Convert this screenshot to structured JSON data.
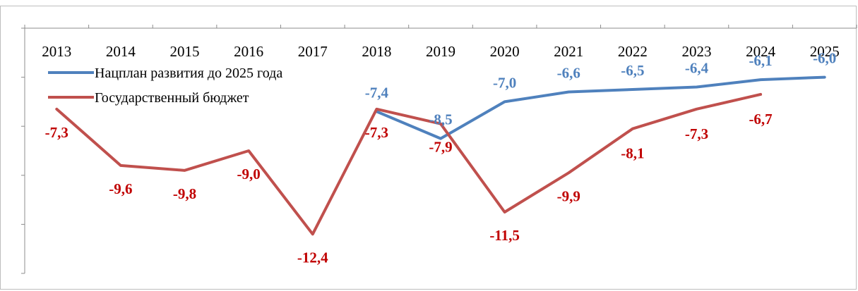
{
  "chart_data": {
    "type": "line",
    "x": [
      "2013",
      "2014",
      "2015",
      "2016",
      "2017",
      "2018",
      "2019",
      "2020",
      "2021",
      "2022",
      "2023",
      "2024",
      "2025"
    ],
    "ylim": [
      -14,
      -4
    ],
    "series": [
      {
        "name": "Нацплан развития до 2025 года",
        "color": "#4f81bd",
        "label_color": "#4f81bd",
        "values": [
          null,
          null,
          null,
          null,
          null,
          -7.4,
          -8.5,
          -7.0,
          -6.6,
          -6.5,
          -6.4,
          -6.1,
          -6.0
        ],
        "labels": [
          "",
          "",
          "",
          "",
          "",
          "-7,4",
          "-8,5",
          "-7,0",
          "-6,6",
          "-6,5",
          "-6,4",
          "-6,1",
          "-6,0"
        ]
      },
      {
        "name": "Государственный бюджет",
        "color": "#c0504d",
        "label_color": "#c00000",
        "values": [
          -7.3,
          -9.6,
          -9.8,
          -9.0,
          -12.4,
          -7.3,
          -7.9,
          -11.5,
          -9.9,
          -8.1,
          -7.3,
          -6.7,
          null
        ],
        "labels": [
          "-7,3",
          "-9,6",
          "-9,8",
          "-9,0",
          "-12,4",
          "-7,3",
          "-7,9",
          "-11,5",
          "-9,9",
          "-8,1",
          "-7,3",
          "-6,7",
          ""
        ]
      }
    ],
    "legend": "top-left",
    "grid": false
  }
}
